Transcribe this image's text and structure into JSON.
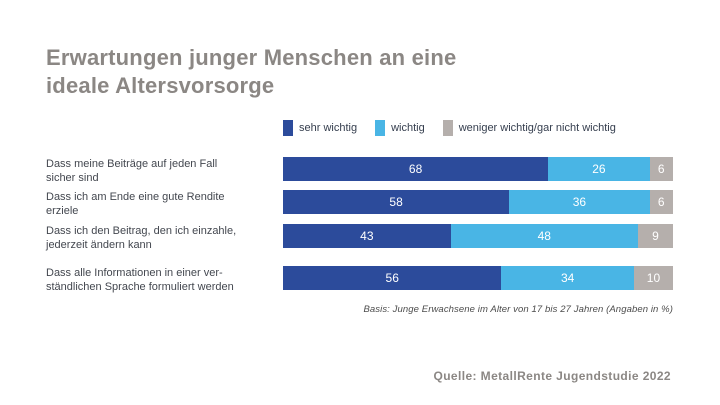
{
  "title": "Erwartungen junger Menschen an eine\nideale Altersvorsorge",
  "legend": [
    {
      "label": "sehr wichtig",
      "color": "#2c4b9b"
    },
    {
      "label": "wichtig",
      "color": "#49b5e5"
    },
    {
      "label": "weniger wichtig/gar nicht wichtig",
      "color": "#b5afac"
    }
  ],
  "chart_data": {
    "type": "bar",
    "orientation": "horizontal",
    "stacked": true,
    "unit": "%",
    "xlim": [
      0,
      100
    ],
    "categories": [
      "Dass meine Beiträge auf jeden Fall\nsicher sind",
      "Dass ich am Ende eine gute Rendite\nerziele",
      "Dass ich den Beitrag, den ich einzahle,\njederzeit ändern kann",
      "Dass alle Informationen in einer ver-\nständlichen Sprache formuliert werden"
    ],
    "series": [
      {
        "name": "sehr wichtig",
        "color": "#2c4b9b",
        "values": [
          68,
          58,
          43,
          56
        ]
      },
      {
        "name": "wichtig",
        "color": "#49b5e5",
        "values": [
          26,
          36,
          48,
          34
        ]
      },
      {
        "name": "weniger wichtig/gar nicht wichtig",
        "color": "#b5afac",
        "values": [
          6,
          6,
          9,
          10
        ]
      }
    ],
    "value_label_color": "#ffffff"
  },
  "footnote": "Basis: Junge Erwachsene im Alter von 17 bis 27 Jahren (Angaben in %)",
  "source": "Quelle: MetallRente Jugendstudie 2022",
  "colors": {
    "background": "#ffffff",
    "title": "#8b8784",
    "category_label": "#43474f",
    "legend_label": "#353e4e",
    "footnote": "#4c4c4c",
    "source": "#8b8784"
  }
}
